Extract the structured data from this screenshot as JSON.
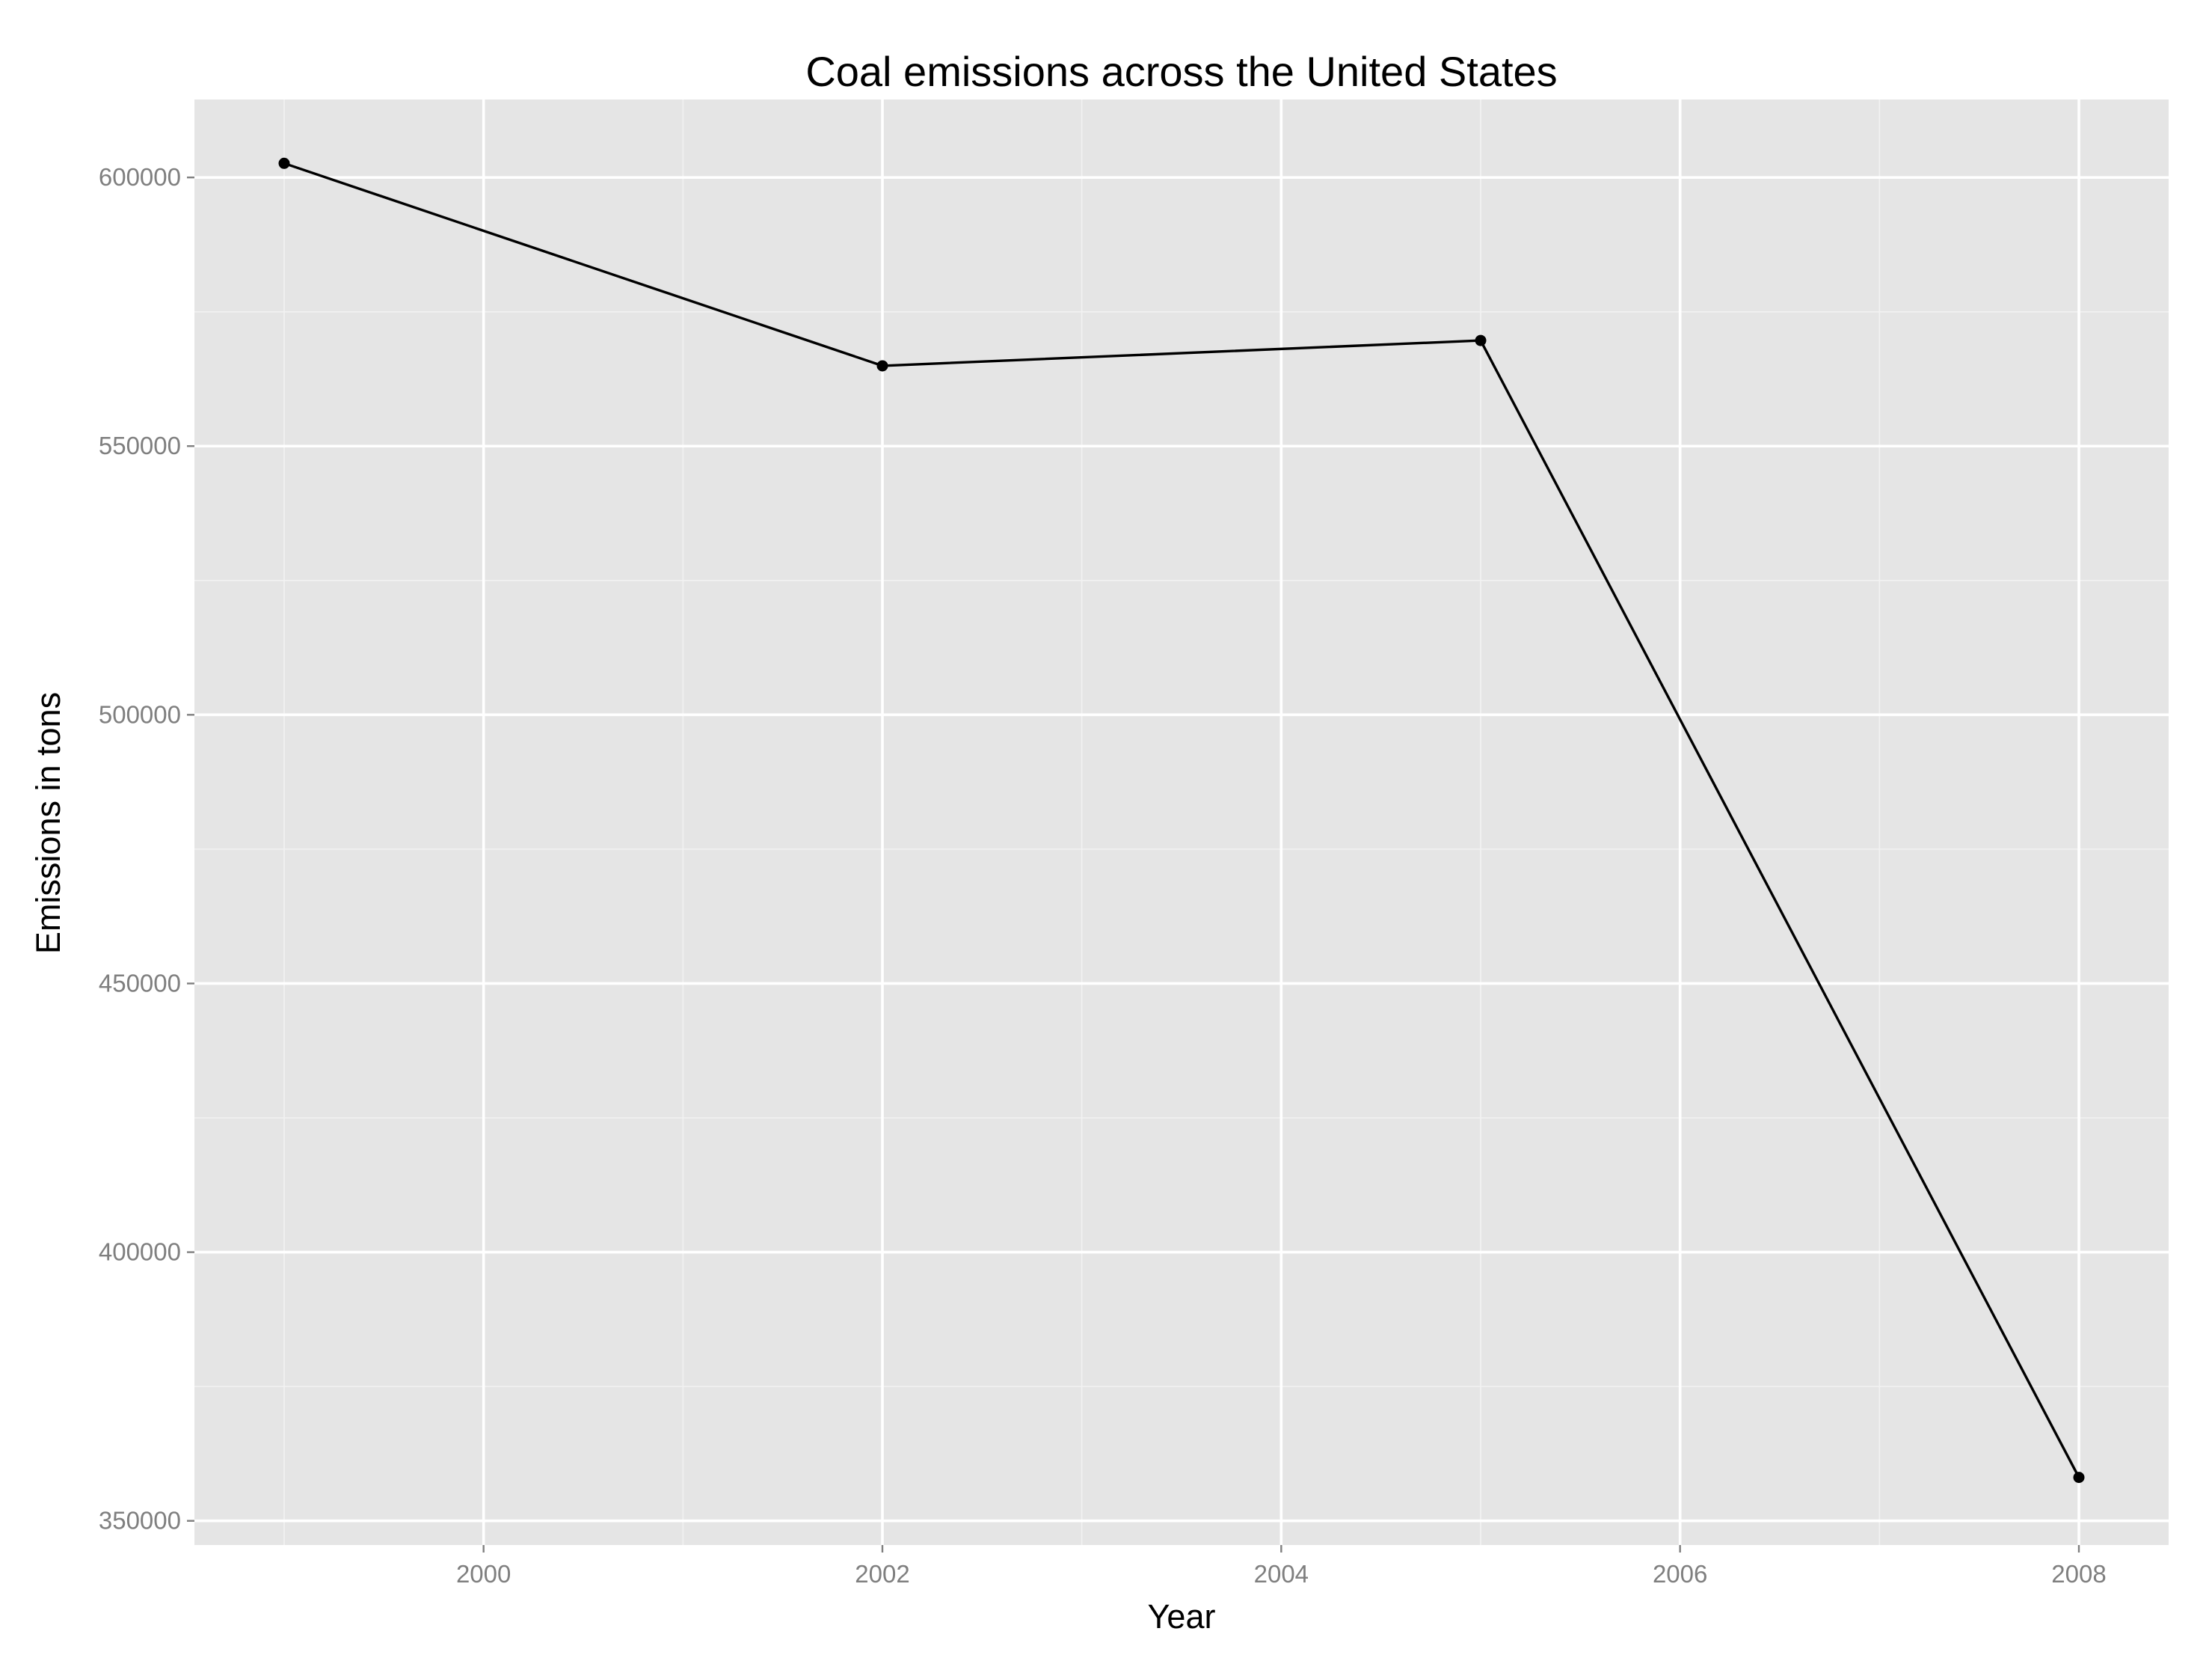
{
  "chart_data": {
    "type": "line",
    "title": "Coal emissions across the United States",
    "xlabel": "Year",
    "ylabel": "Emissions in tons",
    "x": [
      1999,
      2002,
      2005,
      2008
    ],
    "y": [
      602624,
      564940,
      569655,
      358083
    ],
    "xlim": [
      1998.55,
      2008.45
    ],
    "ylim": [
      345500,
      614500
    ],
    "x_major_ticks": [
      2000,
      2002,
      2004,
      2006,
      2008
    ],
    "x_minor_ticks": [
      1999,
      2001,
      2003,
      2005,
      2007
    ],
    "x_tick_labels": [
      "2000",
      "2002",
      "2004",
      "2006",
      "2008"
    ],
    "y_major_ticks": [
      350000,
      400000,
      450000,
      500000,
      550000,
      600000
    ],
    "y_minor_ticks": [
      375000,
      425000,
      475000,
      525000,
      575000
    ],
    "y_tick_labels": [
      "350000",
      "400000",
      "450000",
      "500000",
      "550000",
      "600000"
    ],
    "grid": true,
    "legend": "none",
    "colors": {
      "panel": "#e5e5e5",
      "grid_major": "#ffffff",
      "grid_minor": "#f2f2f2",
      "tick_label": "#7f7f7f",
      "line": "#000000"
    }
  }
}
